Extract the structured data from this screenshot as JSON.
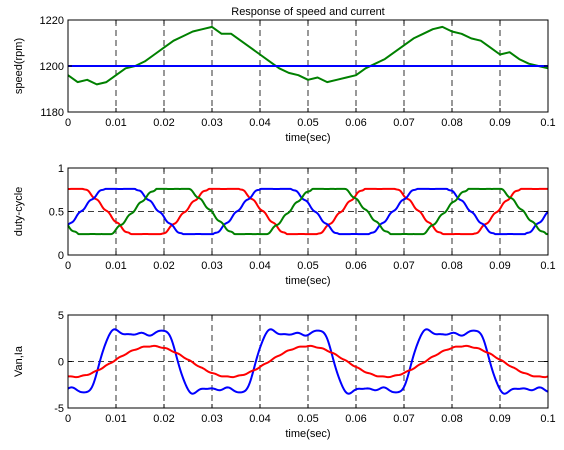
{
  "chart_data": [
    {
      "type": "line",
      "title": "Response of speed and current",
      "xlabel": "time(sec)",
      "ylabel": "speed(rpm)",
      "xlim": [
        0,
        0.1
      ],
      "ylim": [
        1180,
        1220
      ],
      "xticks": [
        "0",
        "0.01",
        "0.02",
        "0.03",
        "0.04",
        "0.05",
        "0.06",
        "0.07",
        "0.08",
        "0.09",
        "0.1"
      ],
      "yticks": [
        "1180",
        "1200",
        "1220"
      ],
      "grid": "x-dashed",
      "series": [
        {
          "color": "#008000",
          "x": [
            0,
            0.002,
            0.004,
            0.006,
            0.008,
            0.01,
            0.012,
            0.014,
            0.016,
            0.018,
            0.02,
            0.022,
            0.024,
            0.026,
            0.028,
            0.03,
            0.032,
            0.034,
            0.036,
            0.038,
            0.04,
            0.042,
            0.044,
            0.046,
            0.048,
            0.05,
            0.052,
            0.054,
            0.056,
            0.058,
            0.06,
            0.062,
            0.064,
            0.066,
            0.068,
            0.07,
            0.072,
            0.074,
            0.076,
            0.078,
            0.08,
            0.082,
            0.084,
            0.086,
            0.088,
            0.09,
            0.092,
            0.094,
            0.096,
            0.098,
            0.1
          ],
          "values": [
            1196,
            1193,
            1194,
            1192,
            1193,
            1196,
            1199,
            1200,
            1202,
            1205,
            1208,
            1211,
            1213,
            1215,
            1216,
            1217,
            1214,
            1214,
            1211,
            1208,
            1205,
            1202,
            1199,
            1197,
            1196,
            1194,
            1195,
            1193,
            1194,
            1195,
            1196,
            1199,
            1201,
            1203,
            1206,
            1209,
            1212,
            1214,
            1216,
            1217,
            1215,
            1214,
            1212,
            1211,
            1208,
            1205,
            1206,
            1203,
            1201,
            1200,
            1199
          ]
        },
        {
          "color": "#0000ff",
          "x": [
            0,
            0.1
          ],
          "values": [
            1200,
            1200
          ]
        }
      ]
    },
    {
      "type": "line",
      "title": "",
      "xlabel": "time(sec)",
      "ylabel": "duty-cycle",
      "xlim": [
        0,
        0.1
      ],
      "ylim": [
        0,
        1
      ],
      "xticks": [
        "0",
        "0.01",
        "0.02",
        "0.03",
        "0.04",
        "0.05",
        "0.06",
        "0.07",
        "0.08",
        "0.09",
        "0.1"
      ],
      "yticks": [
        "0",
        "0.5",
        "1"
      ],
      "grid": "x-dashed, y-dashed at 0.5",
      "series": [
        {
          "color": "#ff0000",
          "waveform": "clipped sinusoid",
          "offset": 0.5,
          "amplitude": 0.33,
          "clip": 0.76,
          "period": 0.0325,
          "phase_deg": 90
        },
        {
          "color": "#0000ff",
          "waveform": "clipped sinusoid",
          "offset": 0.5,
          "amplitude": 0.33,
          "clip": 0.76,
          "period": 0.0325,
          "phase_deg": -30
        },
        {
          "color": "#008000",
          "waveform": "clipped sinusoid",
          "offset": 0.5,
          "amplitude": 0.33,
          "clip": 0.76,
          "period": 0.0325,
          "phase_deg": 210
        }
      ]
    },
    {
      "type": "line",
      "title": "",
      "xlabel": "time(sec)",
      "ylabel": "Van,Ia",
      "xlim": [
        0,
        0.1
      ],
      "ylim": [
        -5,
        5
      ],
      "xticks": [
        "0",
        "0.01",
        "0.02",
        "0.03",
        "0.04",
        "0.05",
        "0.06",
        "0.07",
        "0.08",
        "0.09",
        "0.1"
      ],
      "yticks": [
        "-5",
        "0",
        "5"
      ],
      "grid": "x-dashed, y-dashed at 0",
      "series": [
        {
          "color": "#0000ff",
          "waveform": "distorted sinusoid",
          "amplitude": 4.4,
          "period": 0.0325,
          "peak_at": 0.0148
        },
        {
          "color": "#ff0000",
          "waveform": "sinusoid",
          "amplitude": 1.65,
          "period": 0.0325,
          "peak_at": 0.0175
        }
      ]
    }
  ]
}
